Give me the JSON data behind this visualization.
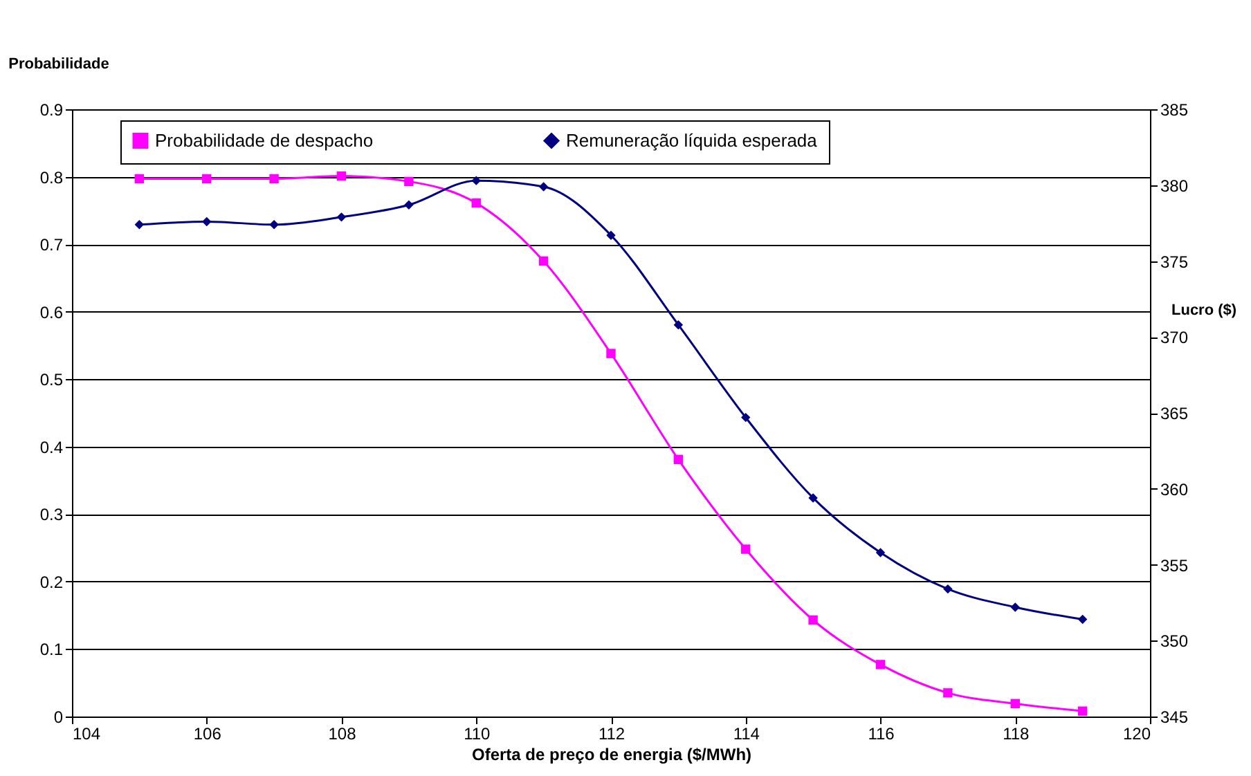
{
  "chart_data": {
    "type": "line",
    "xlabel": "Oferta de preço de energia ($/MWh)",
    "ylabel": "Probabilidade",
    "y2label": "Lucro ($)",
    "x": [
      105,
      106,
      107,
      108,
      109,
      110,
      111,
      112,
      113,
      114,
      115,
      116,
      117,
      118,
      119
    ],
    "series": [
      {
        "name": "Probabilidade de despacho",
        "color": "#ff00ff",
        "marker": "square",
        "values": [
          0.797,
          0.797,
          0.797,
          0.801,
          0.793,
          0.761,
          0.675,
          0.538,
          0.381,
          0.248,
          0.143,
          0.077,
          0.035,
          0.019,
          0.008
        ]
      },
      {
        "name": "Remuneração líquida esperada",
        "color": "#000080",
        "marker": "diamond",
        "axis": "y2",
        "values": [
          377.4,
          377.6,
          377.4,
          377.9,
          378.7,
          380.3,
          379.9,
          376.7,
          370.8,
          364.7,
          359.4,
          355.8,
          353.4,
          352.2,
          351.4
        ]
      }
    ],
    "xlim": [
      104,
      120
    ],
    "xticks": [
      104,
      106,
      108,
      110,
      112,
      114,
      116,
      118,
      120
    ],
    "ylim": [
      0,
      0.9
    ],
    "yticks": [
      0,
      0.1,
      0.2,
      0.3,
      0.4,
      0.5,
      0.6,
      0.7,
      0.8,
      0.9
    ],
    "y2lim": [
      345,
      385
    ],
    "y2ticks": [
      345,
      350,
      355,
      360,
      365,
      370,
      375,
      380,
      385
    ],
    "grid": "y",
    "legend": "top",
    "line_style": "solid"
  }
}
